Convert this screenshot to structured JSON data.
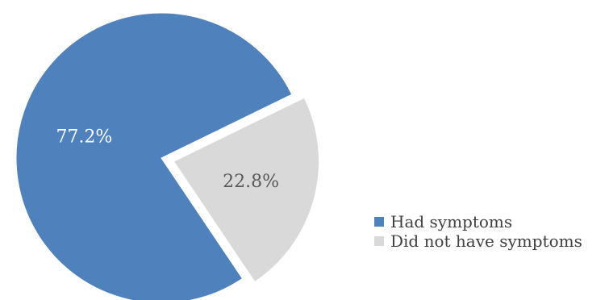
{
  "chart_data": {
    "type": "pie",
    "categories": [
      "Had symptoms",
      "Did not have symptoms"
    ],
    "values": [
      77.2,
      22.8
    ],
    "labels": [
      "77.2%",
      "22.8%"
    ],
    "colors": [
      "#4f81bd",
      "#d9d9d9"
    ],
    "label_colors": [
      "#ffffff",
      "#595959"
    ],
    "legend_position": "bottom-right",
    "exploded_slice": "Did not have symptoms"
  }
}
